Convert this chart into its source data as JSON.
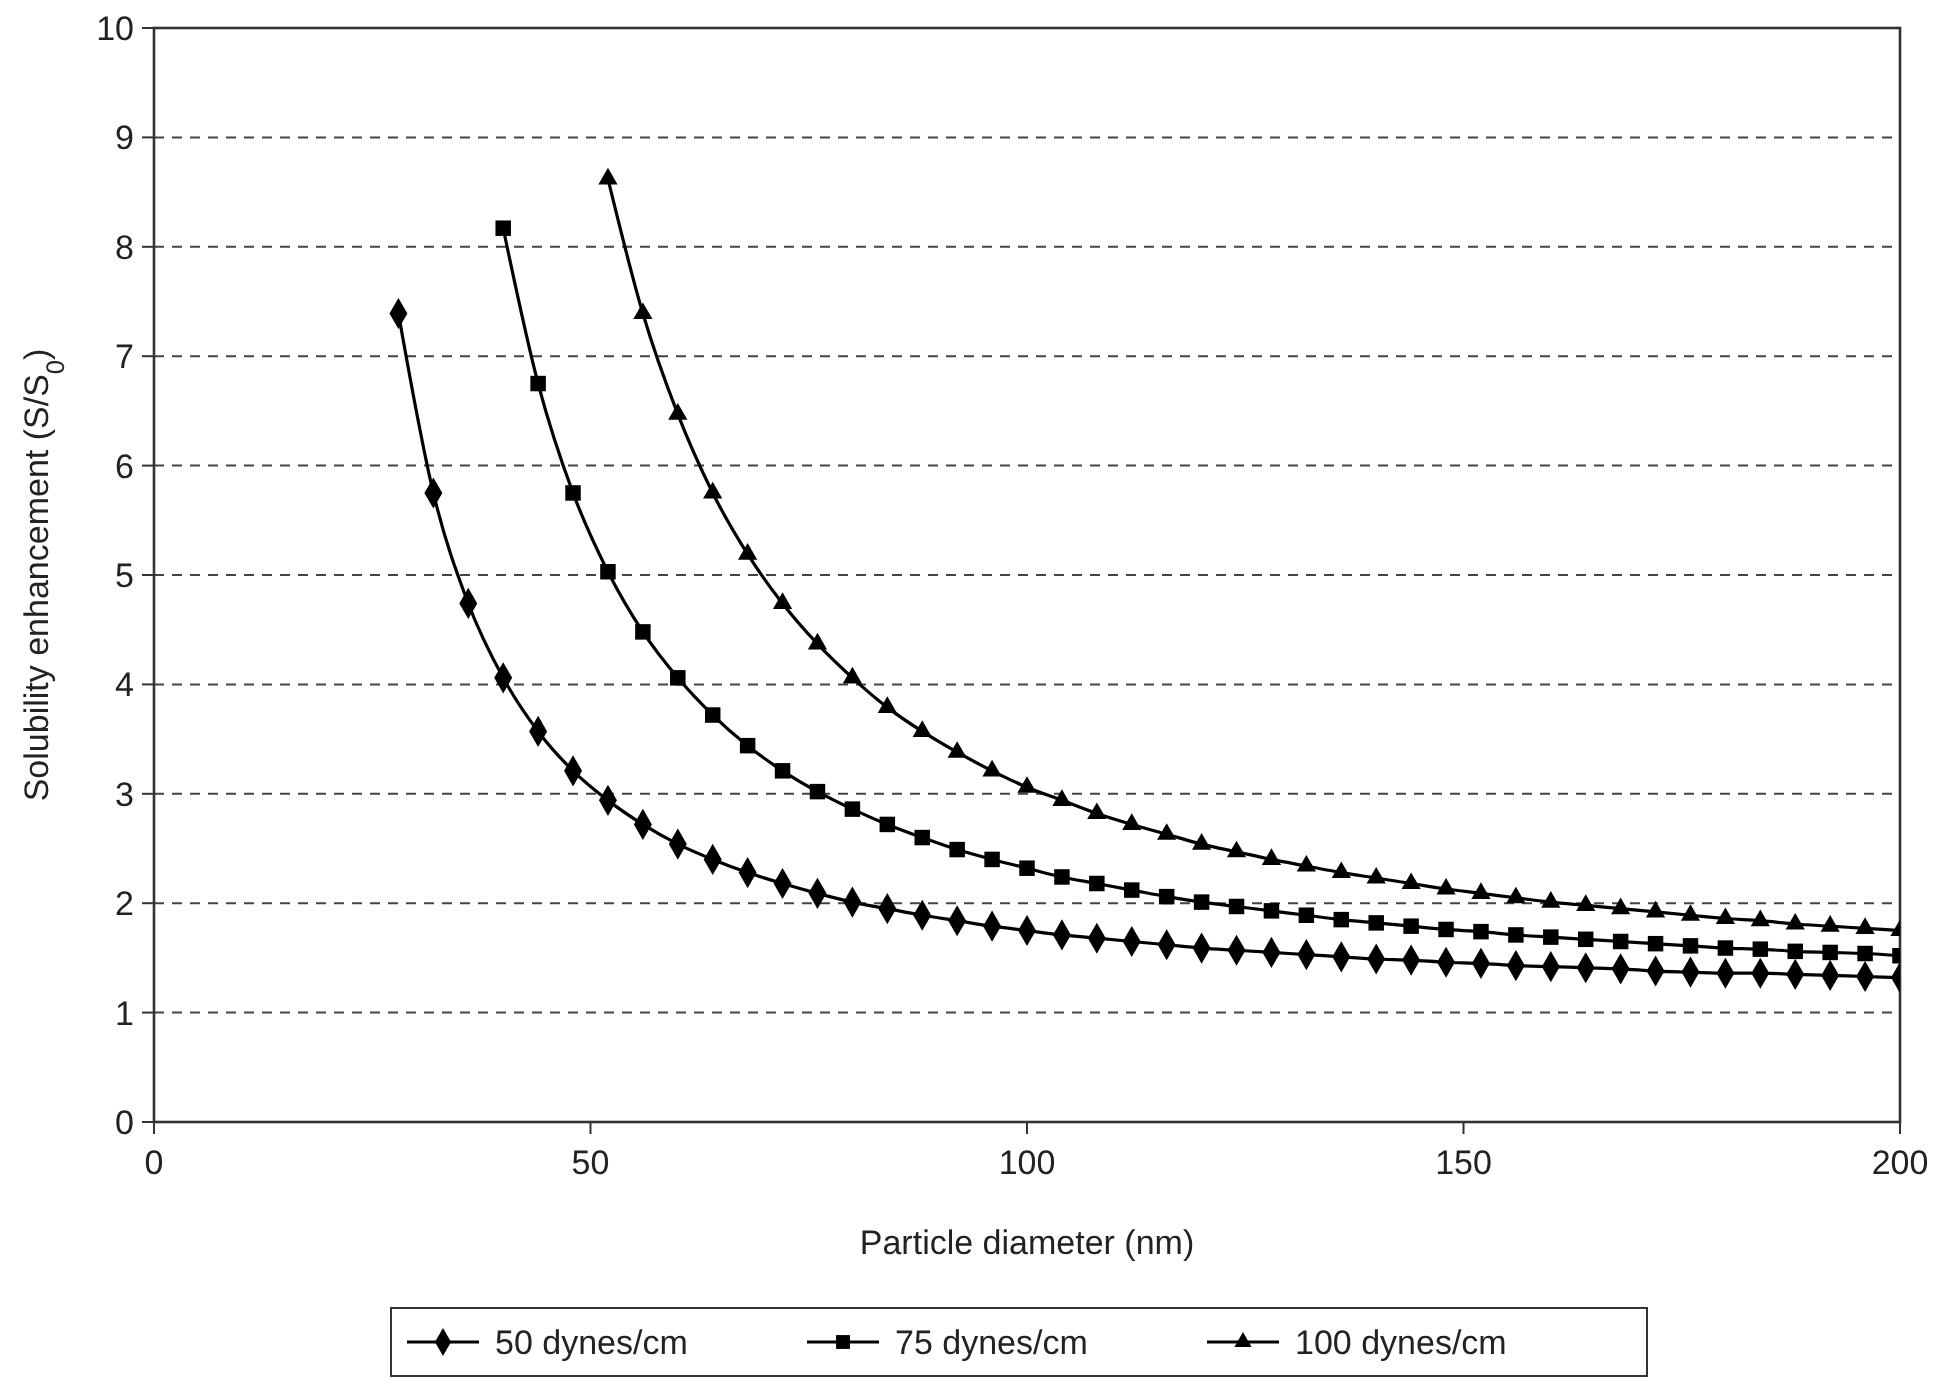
{
  "chart_data": {
    "type": "line",
    "xlabel": "Particle diameter (nm)",
    "ylabel": "Solubility enhancement (S/S$_{0}$)",
    "xlim": [
      0,
      200
    ],
    "xticks": [
      0,
      50,
      100,
      150,
      200
    ],
    "ylim": [
      0,
      10
    ],
    "yticks": [
      0,
      1,
      2,
      3,
      4,
      5,
      6,
      7,
      8,
      9,
      10
    ],
    "grid": "y",
    "legend": "bottom",
    "series": [
      {
        "name": "50 dynes/cm",
        "color": "#000000",
        "marker": "diamond",
        "x": [
          28,
          32,
          36,
          40,
          44,
          48,
          52,
          56,
          60,
          64,
          68,
          72,
          76,
          80,
          84,
          88,
          92,
          96,
          100,
          104,
          108,
          112,
          116,
          120,
          124,
          128,
          132,
          136,
          140,
          144,
          148,
          152,
          156,
          160,
          164,
          168,
          172,
          176,
          180,
          184,
          188,
          192,
          196,
          200
        ],
        "values": [
          7.39,
          5.75,
          4.74,
          4.06,
          3.57,
          3.21,
          2.94,
          2.72,
          2.54,
          2.4,
          2.28,
          2.18,
          2.09,
          2.01,
          1.95,
          1.89,
          1.84,
          1.79,
          1.75,
          1.71,
          1.68,
          1.65,
          1.62,
          1.59,
          1.57,
          1.55,
          1.53,
          1.51,
          1.49,
          1.48,
          1.46,
          1.45,
          1.43,
          1.42,
          1.41,
          1.4,
          1.38,
          1.37,
          1.36,
          1.36,
          1.35,
          1.34,
          1.33,
          1.32
        ]
      },
      {
        "name": "75 dynes/cm",
        "color": "#000000",
        "marker": "square",
        "x": [
          40,
          44,
          48,
          52,
          56,
          60,
          64,
          68,
          72,
          76,
          80,
          84,
          88,
          92,
          96,
          100,
          104,
          108,
          112,
          116,
          120,
          124,
          128,
          132,
          136,
          140,
          144,
          148,
          152,
          156,
          160,
          164,
          168,
          172,
          176,
          180,
          184,
          188,
          192,
          196,
          200
        ],
        "values": [
          8.17,
          6.75,
          5.75,
          5.03,
          4.48,
          4.06,
          3.72,
          3.44,
          3.21,
          3.02,
          2.86,
          2.72,
          2.6,
          2.49,
          2.4,
          2.32,
          2.24,
          2.18,
          2.12,
          2.06,
          2.01,
          1.97,
          1.93,
          1.89,
          1.85,
          1.82,
          1.79,
          1.76,
          1.74,
          1.71,
          1.69,
          1.67,
          1.65,
          1.63,
          1.61,
          1.59,
          1.58,
          1.56,
          1.55,
          1.54,
          1.52
        ]
      },
      {
        "name": "100 dynes/cm",
        "color": "#000000",
        "marker": "triangle",
        "x": [
          52,
          56,
          60,
          64,
          68,
          72,
          76,
          80,
          84,
          88,
          92,
          96,
          100,
          104,
          108,
          112,
          116,
          120,
          124,
          128,
          132,
          136,
          140,
          144,
          148,
          152,
          156,
          160,
          164,
          168,
          172,
          176,
          180,
          184,
          188,
          192,
          196,
          200
        ],
        "values": [
          8.62,
          7.39,
          6.47,
          5.75,
          5.19,
          4.74,
          4.37,
          4.06,
          3.79,
          3.57,
          3.38,
          3.21,
          3.06,
          2.94,
          2.82,
          2.72,
          2.63,
          2.54,
          2.47,
          2.4,
          2.34,
          2.28,
          2.23,
          2.18,
          2.13,
          2.09,
          2.05,
          2.01,
          1.98,
          1.95,
          1.92,
          1.89,
          1.86,
          1.84,
          1.81,
          1.79,
          1.77,
          1.75
        ]
      }
    ]
  }
}
